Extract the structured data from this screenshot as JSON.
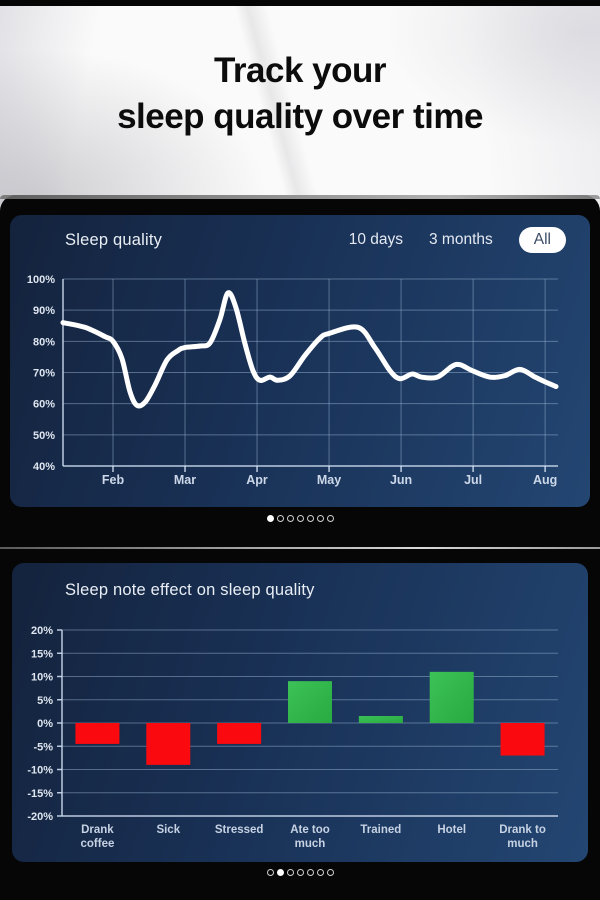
{
  "page": {
    "headline_line1": "Track your",
    "headline_line2": "sleep quality over time"
  },
  "top_panel": {
    "title": "Sleep quality",
    "tabs": [
      {
        "label": "10 days",
        "active": false
      },
      {
        "label": "3 months",
        "active": false
      },
      {
        "label": "All",
        "active": true
      }
    ],
    "pager": {
      "count": 7,
      "active_index": 0
    }
  },
  "bottom_panel": {
    "title": "Sleep note effect on sleep quality",
    "pager": {
      "count": 7,
      "active_index": 1
    }
  },
  "colors": {
    "screen_bg": "#193156",
    "grid": "rgba(165,190,220,0.45)",
    "axis": "rgba(205,220,240,0.9)",
    "line": "#ffffff",
    "positive": "#28ab41",
    "positive_light": "#3cc258",
    "negative": "#fa0a0e",
    "pill_bg": "#ffffff",
    "pill_text": "#3b4b66"
  },
  "chart_data": [
    {
      "type": "line",
      "title": "Sleep quality",
      "x_tick_labels": [
        "Feb",
        "Mar",
        "Apr",
        "May",
        "Jun",
        "Jul",
        "Aug"
      ],
      "y_tick_labels": [
        "100%",
        "90%",
        "80%",
        "70%",
        "60%",
        "50%",
        "40%"
      ],
      "ylim": [
        40,
        100
      ],
      "y_step": 10,
      "grid": true,
      "line_color": "#ffffff",
      "points_frac_pct": [
        [
          0.0,
          86
        ],
        [
          0.044,
          84.5
        ],
        [
          0.085,
          81.5
        ],
        [
          0.101,
          80
        ],
        [
          0.119,
          74.5
        ],
        [
          0.135,
          64
        ],
        [
          0.149,
          59.5
        ],
        [
          0.166,
          60.5
        ],
        [
          0.186,
          66
        ],
        [
          0.21,
          74
        ],
        [
          0.232,
          77
        ],
        [
          0.246,
          78
        ],
        [
          0.277,
          78.5
        ],
        [
          0.297,
          79.5
        ],
        [
          0.317,
          87
        ],
        [
          0.333,
          95.5
        ],
        [
          0.349,
          91
        ],
        [
          0.368,
          79
        ],
        [
          0.384,
          70.5
        ],
        [
          0.398,
          67.5
        ],
        [
          0.418,
          68.5
        ],
        [
          0.434,
          67.5
        ],
        [
          0.459,
          69
        ],
        [
          0.489,
          75.5
        ],
        [
          0.519,
          81
        ],
        [
          0.537,
          82.5
        ],
        [
          0.596,
          84.5
        ],
        [
          0.63,
          78
        ],
        [
          0.661,
          70.5
        ],
        [
          0.681,
          68
        ],
        [
          0.705,
          69.5
        ],
        [
          0.725,
          68.5
        ],
        [
          0.756,
          68.5
        ],
        [
          0.786,
          72
        ],
        [
          0.802,
          72.5
        ],
        [
          0.828,
          70.5
        ],
        [
          0.863,
          68.5
        ],
        [
          0.893,
          69
        ],
        [
          0.923,
          71
        ],
        [
          0.954,
          68.5
        ],
        [
          0.974,
          67
        ],
        [
          0.996,
          65.5
        ]
      ]
    },
    {
      "type": "bar",
      "title": "Sleep note effect on sleep quality",
      "categories": [
        "Drank coffee",
        "Sick",
        "Stressed",
        "Ate too much",
        "Trained",
        "Hotel",
        "Drank to much"
      ],
      "category_lines": [
        [
          "Drank",
          "coffee"
        ],
        [
          "Sick"
        ],
        [
          "Stressed"
        ],
        [
          "Ate too",
          "much"
        ],
        [
          "Trained"
        ],
        [
          "Hotel"
        ],
        [
          "Drank to",
          "much"
        ]
      ],
      "values": [
        -4.5,
        -9,
        -4.5,
        9,
        1.5,
        11,
        -7
      ],
      "ylim": [
        -20,
        20
      ],
      "y_step": 5,
      "y_tick_labels": [
        "20%",
        "15%",
        "10%",
        "5%",
        "0%",
        "-5%",
        "-10%",
        "-15%",
        "-20%"
      ],
      "grid": true,
      "positive_color": "#28ab41",
      "negative_color": "#fa0a0e"
    }
  ]
}
